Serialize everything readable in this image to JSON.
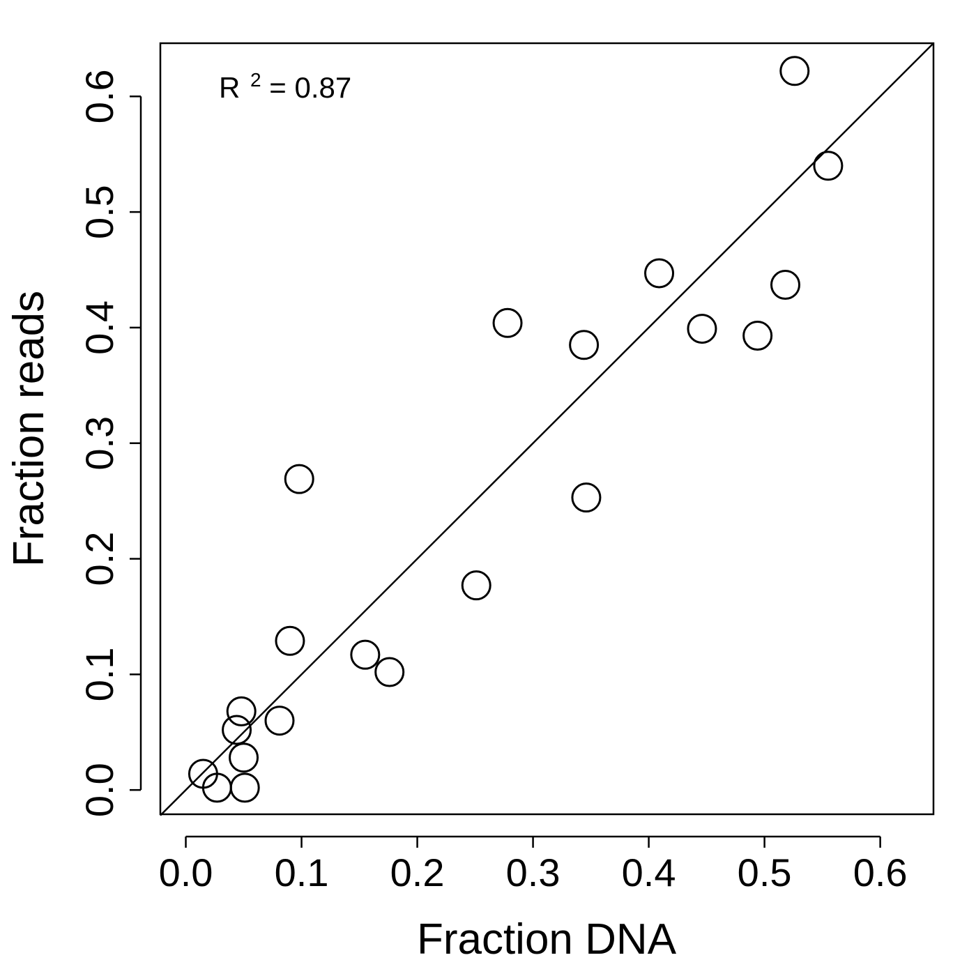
{
  "chart_data": {
    "type": "scatter",
    "title": "",
    "xlabel": "Fraction DNA",
    "ylabel": "Fraction reads",
    "xlim": [
      -0.022,
      0.646
    ],
    "ylim": [
      -0.021,
      0.646
    ],
    "x_ticks": [
      "0.0",
      "0.1",
      "0.2",
      "0.3",
      "0.4",
      "0.5",
      "0.6"
    ],
    "y_ticks": [
      "0.0",
      "0.1",
      "0.2",
      "0.3",
      "0.4",
      "0.5",
      "0.6"
    ],
    "annotation": {
      "base": "R",
      "superscript": "2",
      "text": " = 0.87"
    },
    "reference_line": {
      "slope": 1,
      "intercept": 0
    },
    "points": [
      {
        "x": 0.526,
        "y": 0.622
      },
      {
        "x": 0.555,
        "y": 0.54
      },
      {
        "x": 0.409,
        "y": 0.447
      },
      {
        "x": 0.518,
        "y": 0.437
      },
      {
        "x": 0.278,
        "y": 0.404
      },
      {
        "x": 0.344,
        "y": 0.385
      },
      {
        "x": 0.446,
        "y": 0.399
      },
      {
        "x": 0.494,
        "y": 0.393
      },
      {
        "x": 0.098,
        "y": 0.269
      },
      {
        "x": 0.346,
        "y": 0.253
      },
      {
        "x": 0.251,
        "y": 0.177
      },
      {
        "x": 0.09,
        "y": 0.129
      },
      {
        "x": 0.155,
        "y": 0.117
      },
      {
        "x": 0.176,
        "y": 0.102
      },
      {
        "x": 0.081,
        "y": 0.06
      },
      {
        "x": 0.048,
        "y": 0.068
      },
      {
        "x": 0.044,
        "y": 0.052
      },
      {
        "x": 0.05,
        "y": 0.028
      },
      {
        "x": 0.015,
        "y": 0.014
      },
      {
        "x": 0.027,
        "y": 0.002
      },
      {
        "x": 0.051,
        "y": 0.002
      }
    ]
  }
}
